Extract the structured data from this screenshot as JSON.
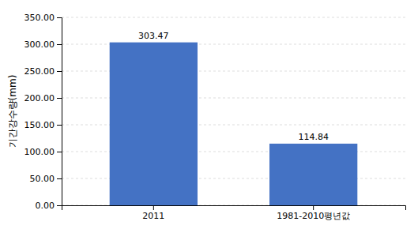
{
  "chart_data": {
    "type": "bar",
    "categories": [
      "2011",
      "1981-2010평년값"
    ],
    "values": [
      303.47,
      114.84
    ],
    "color": "#4472C4",
    "y_label": "기간강수량(mm)",
    "ylim": [
      0,
      350
    ],
    "yticks": [
      {
        "value": 0,
        "label": "0.00"
      },
      {
        "value": 50,
        "label": "50.00"
      },
      {
        "value": 100,
        "label": "100.00"
      },
      {
        "value": 150,
        "label": "150.00"
      },
      {
        "value": 200,
        "label": "200.00"
      },
      {
        "value": 250,
        "label": "250.00"
      },
      {
        "value": 300,
        "label": "300.00"
      },
      {
        "value": 350,
        "label": "350.00"
      }
    ],
    "grid": true,
    "data_labels": true
  }
}
